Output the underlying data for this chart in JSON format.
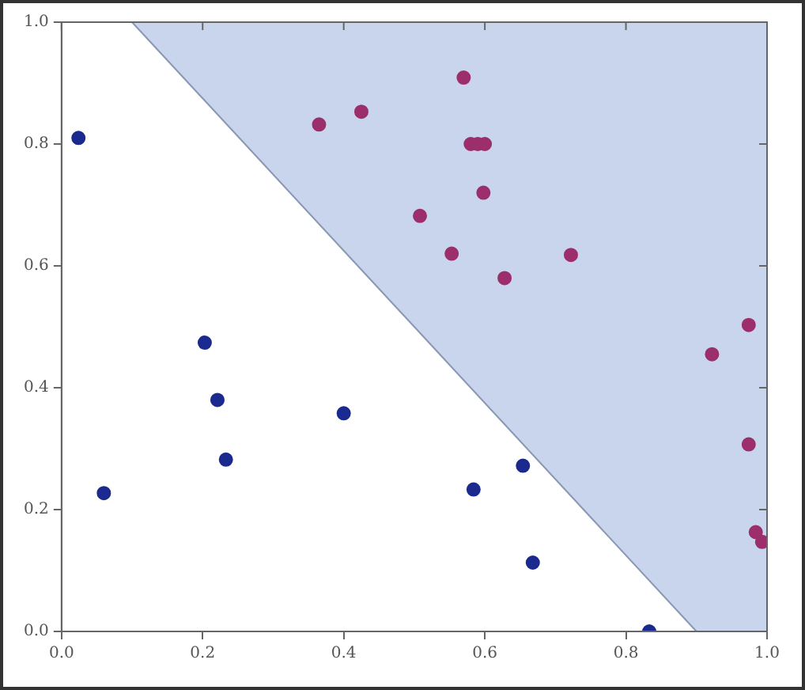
{
  "chart_data": {
    "type": "scatter",
    "xlim": [
      0,
      1
    ],
    "ylim": [
      0,
      1
    ],
    "xticks": [
      {
        "value": 0,
        "label": "0.0"
      },
      {
        "value": 0.2,
        "label": "0.2"
      },
      {
        "value": 0.4,
        "label": "0.4"
      },
      {
        "value": 0.6,
        "label": "0.6"
      },
      {
        "value": 0.8,
        "label": "0.8"
      },
      {
        "value": 1,
        "label": "1.0"
      }
    ],
    "yticks": [
      {
        "value": 0,
        "label": "0.0"
      },
      {
        "value": 0.2,
        "label": "0.2"
      },
      {
        "value": 0.4,
        "label": "0.4"
      },
      {
        "value": 0.6,
        "label": "0.6"
      },
      {
        "value": 0.8,
        "label": "0.8"
      },
      {
        "value": 1,
        "label": "1.0"
      }
    ],
    "grid": false,
    "legend": false,
    "marker": "circle",
    "series": [
      {
        "type": "line",
        "marker": "none",
        "color": "#8a98b2",
        "x": [
          0.1,
          0.9,
          1.0
        ],
        "values": [
          1,
          0,
          0
        ],
        "lower": [
          1,
          0,
          0
        ],
        "upper": [
          1,
          1,
          1
        ]
      },
      {
        "color": "#1b2a8e",
        "x": [
          0.024,
          0.06,
          0.203,
          0.221,
          0.233,
          0.4,
          0.584,
          0.654,
          0.668,
          0.833
        ],
        "values": [
          0.81,
          0.227,
          0.474,
          0.38,
          0.282,
          0.358,
          0.233,
          0.272,
          0.113,
          0.0
        ]
      },
      {
        "color": "#9c2e6c",
        "x": [
          0.365,
          0.425,
          0.57,
          0.58,
          0.59,
          0.6,
          0.598,
          0.508,
          0.553,
          0.722,
          0.628,
          0.974,
          0.922,
          0.974,
          0.984,
          0.993
        ],
        "values": [
          0.832,
          0.853,
          0.909,
          0.8,
          0.8,
          0.8,
          0.72,
          0.682,
          0.62,
          0.618,
          0.58,
          0.503,
          0.455,
          0.307,
          0.163,
          0.147
        ]
      }
    ]
  }
}
